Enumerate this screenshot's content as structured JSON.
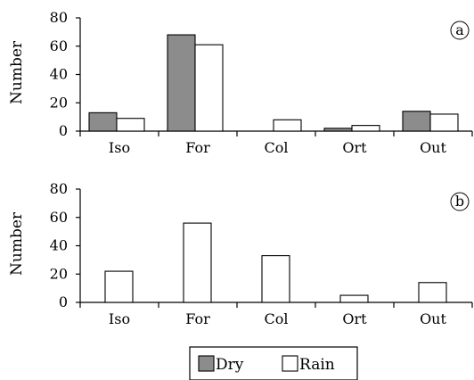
{
  "chart_data": [
    {
      "type": "bar",
      "panel_label": "a",
      "ylabel": "Number",
      "ylim": [
        0,
        80
      ],
      "yticks": [
        0,
        20,
        40,
        60,
        80
      ],
      "categories": [
        "Iso",
        "For",
        "Col",
        "Ort",
        "Out"
      ],
      "series": [
        {
          "name": "Dry",
          "values": [
            13,
            68,
            0,
            2,
            14
          ],
          "color": "#8c8c8c"
        },
        {
          "name": "Rain",
          "values": [
            9,
            61,
            8,
            4,
            12
          ],
          "color": "#ffffff"
        }
      ]
    },
    {
      "type": "bar",
      "panel_label": "b",
      "ylabel": "Number",
      "ylim": [
        0,
        80
      ],
      "yticks": [
        0,
        20,
        40,
        60,
        80
      ],
      "categories": [
        "Iso",
        "For",
        "Col",
        "Ort",
        "Out"
      ],
      "series": [
        {
          "name": "Rain",
          "values": [
            22,
            56,
            33,
            5,
            14
          ],
          "color": "#ffffff"
        }
      ]
    }
  ],
  "legend": {
    "placement": "bottom-center",
    "items": [
      {
        "label": "Dry",
        "color": "#8c8c8c"
      },
      {
        "label": "Rain",
        "color": "#ffffff"
      }
    ]
  }
}
